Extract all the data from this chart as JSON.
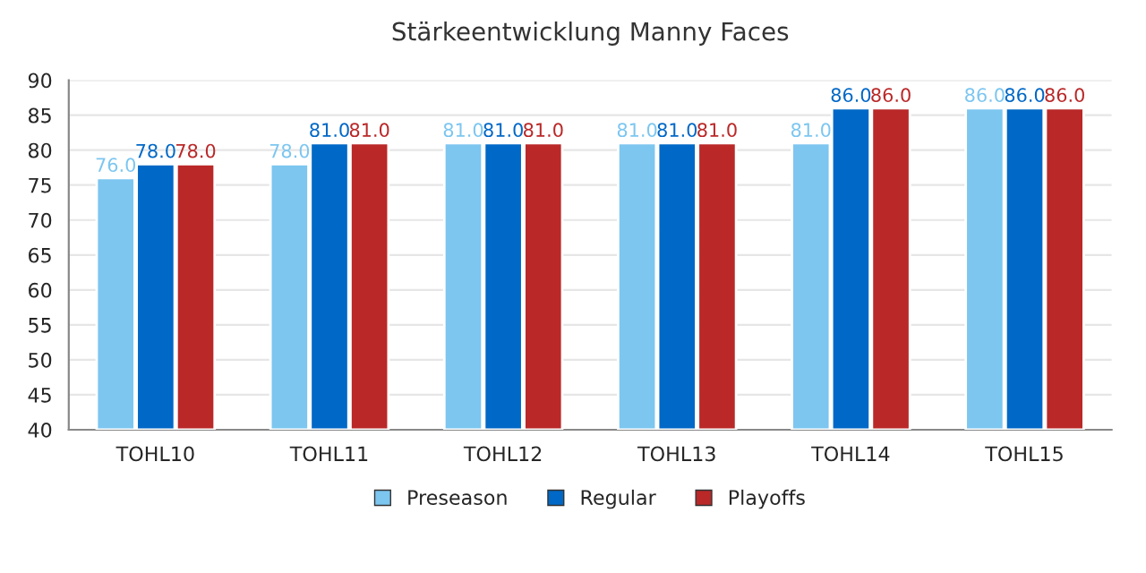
{
  "chart_data": {
    "type": "bar",
    "title": "Stärkeentwicklung Manny Faces",
    "categories": [
      "TOHL10",
      "TOHL11",
      "TOHL12",
      "TOHL13",
      "TOHL14",
      "TOHL15"
    ],
    "series": [
      {
        "name": "Preseason",
        "color": "#7cc6f0",
        "values": [
          76,
          78,
          81,
          81,
          81,
          86
        ],
        "value_labels": [
          "76.0",
          "78.0",
          "81.0",
          "81.0",
          "81.0",
          "86.0"
        ]
      },
      {
        "name": "Regular",
        "color": "#0068c6",
        "values": [
          78,
          81,
          81,
          81,
          86,
          86
        ],
        "value_labels": [
          "78.0",
          "81.0",
          "81.0",
          "81.0",
          "86.0",
          "86.0"
        ]
      },
      {
        "name": "Playoffs",
        "color": "#ba2828",
        "values": [
          78,
          81,
          81,
          81,
          86,
          86
        ],
        "value_labels": [
          "78.0",
          "81.0",
          "81.0",
          "81.0",
          "86.0",
          "86.0"
        ]
      }
    ],
    "ylim": [
      40,
      90
    ],
    "yticks": [
      40,
      45,
      50,
      55,
      60,
      65,
      70,
      75,
      80,
      85,
      90
    ],
    "grid": "y",
    "legend": "bottom"
  }
}
